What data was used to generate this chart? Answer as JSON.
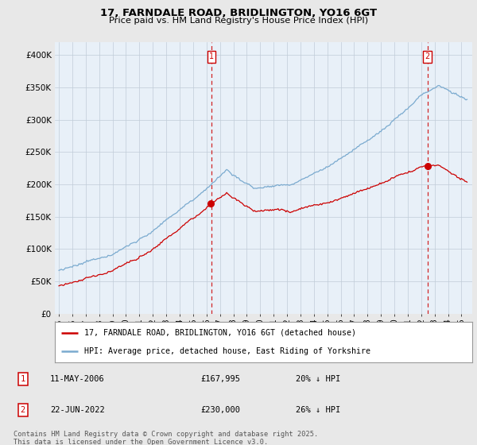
{
  "title": "17, FARNDALE ROAD, BRIDLINGTON, YO16 6GT",
  "subtitle": "Price paid vs. HM Land Registry's House Price Index (HPI)",
  "ylabel_vals": [
    "£0",
    "£50K",
    "£100K",
    "£150K",
    "£200K",
    "£250K",
    "£300K",
    "£350K",
    "£400K"
  ],
  "yticks": [
    0,
    50000,
    100000,
    150000,
    200000,
    250000,
    300000,
    350000,
    400000
  ],
  "ylim": [
    0,
    420000
  ],
  "background_color": "#e8e8e8",
  "plot_bg": "#e8f0f8",
  "legend_label_red": "17, FARNDALE ROAD, BRIDLINGTON, YO16 6GT (detached house)",
  "legend_label_blue": "HPI: Average price, detached house, East Riding of Yorkshire",
  "sale1_date": "11-MAY-2006",
  "sale1_price": 167995,
  "sale1_hpi": "20% ↓ HPI",
  "sale2_date": "22-JUN-2022",
  "sale2_price": 230000,
  "sale2_hpi": "26% ↓ HPI",
  "footnote": "Contains HM Land Registry data © Crown copyright and database right 2025.\nThis data is licensed under the Open Government Licence v3.0.",
  "red_color": "#cc0000",
  "blue_color": "#7aaacf",
  "vline_color": "#cc0000",
  "sale1_year": 2006.37,
  "sale2_year": 2022.47,
  "xlim_start": 1994.7,
  "xlim_end": 2025.8
}
